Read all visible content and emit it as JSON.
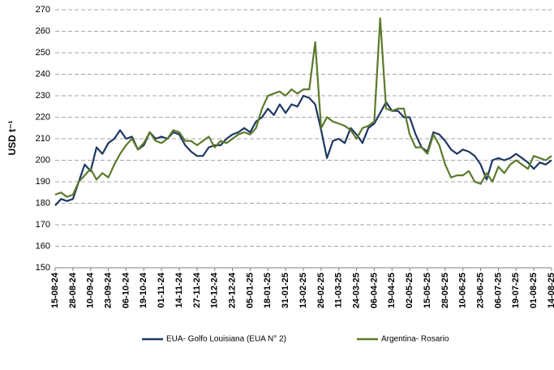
{
  "chart_data": {
    "type": "line",
    "y_label": "USD t⁻¹",
    "categories": [
      "15-08-24",
      null,
      null,
      "28-08-24",
      null,
      null,
      "10-09-24",
      null,
      null,
      "23-09-24",
      null,
      null,
      "06-10-24",
      null,
      null,
      "19-10-24",
      null,
      null,
      "01-11-24",
      null,
      null,
      "14-11-24",
      null,
      null,
      "27-11-24",
      null,
      null,
      "10-12-24",
      null,
      null,
      "23-12-24",
      null,
      null,
      "05-01-25",
      null,
      null,
      "18-01-25",
      null,
      null,
      "31-01-25",
      null,
      null,
      "13-02-25",
      null,
      null,
      "26-02-25",
      null,
      null,
      "11-03-25",
      null,
      null,
      "24-03-25",
      null,
      null,
      "06-04-25",
      null,
      null,
      "19-04-25",
      null,
      null,
      "02-05-25",
      null,
      null,
      "15-05-25",
      null,
      null,
      "28-05-25",
      null,
      null,
      "10-06-25",
      null,
      null,
      "23-06-25",
      null,
      null,
      "06-07-25",
      null,
      null,
      "19-07-25",
      null,
      null,
      "01-08-25",
      null,
      null,
      "14-08-25"
    ],
    "series": [
      {
        "name": "EUA- Golfo Louisiana (EUA N° 2)",
        "color": "#1f3864",
        "values": [
          179,
          182,
          181,
          182,
          190,
          198,
          195,
          206,
          203,
          208,
          210,
          214,
          210,
          211,
          205,
          207,
          213,
          210,
          211,
          210,
          213,
          212,
          207,
          204,
          202,
          202,
          206,
          207,
          207,
          210,
          212,
          213,
          215,
          213,
          218,
          220,
          224,
          221,
          226,
          222,
          226,
          225,
          230,
          229,
          226,
          214,
          201,
          209,
          210,
          208,
          215,
          212,
          208,
          215,
          217,
          222,
          227,
          223,
          223,
          220,
          220,
          212,
          206,
          204,
          213,
          212,
          209,
          205,
          203,
          205,
          204,
          202,
          198,
          191,
          200,
          201,
          200,
          201,
          203,
          201,
          199,
          196,
          199,
          198,
          200
        ]
      },
      {
        "name": "Argentina- Rosario",
        "color": "#5b7a2b",
        "values": [
          184,
          185,
          183,
          184,
          190,
          193,
          196,
          191,
          194,
          192,
          198,
          203,
          207,
          210,
          205,
          208,
          213,
          209,
          208,
          210,
          214,
          213,
          209,
          209,
          207,
          209,
          211,
          206,
          209,
          208,
          210,
          212,
          213,
          212,
          215,
          224,
          230,
          231,
          232,
          230,
          233,
          231,
          233,
          233,
          255,
          215,
          220,
          218,
          217,
          216,
          214,
          210,
          215,
          216,
          218,
          266,
          224,
          223,
          224,
          224,
          212,
          206,
          206,
          203,
          212,
          207,
          198,
          192,
          193,
          193,
          195,
          190,
          189,
          194,
          190,
          197,
          194,
          198,
          200,
          198,
          196,
          202,
          201,
          200,
          202
        ]
      }
    ],
    "ylim": [
      150,
      270
    ],
    "yticks": [
      150,
      160,
      170,
      180,
      190,
      200,
      210,
      220,
      230,
      240,
      250,
      260,
      270
    ],
    "grid": true
  }
}
